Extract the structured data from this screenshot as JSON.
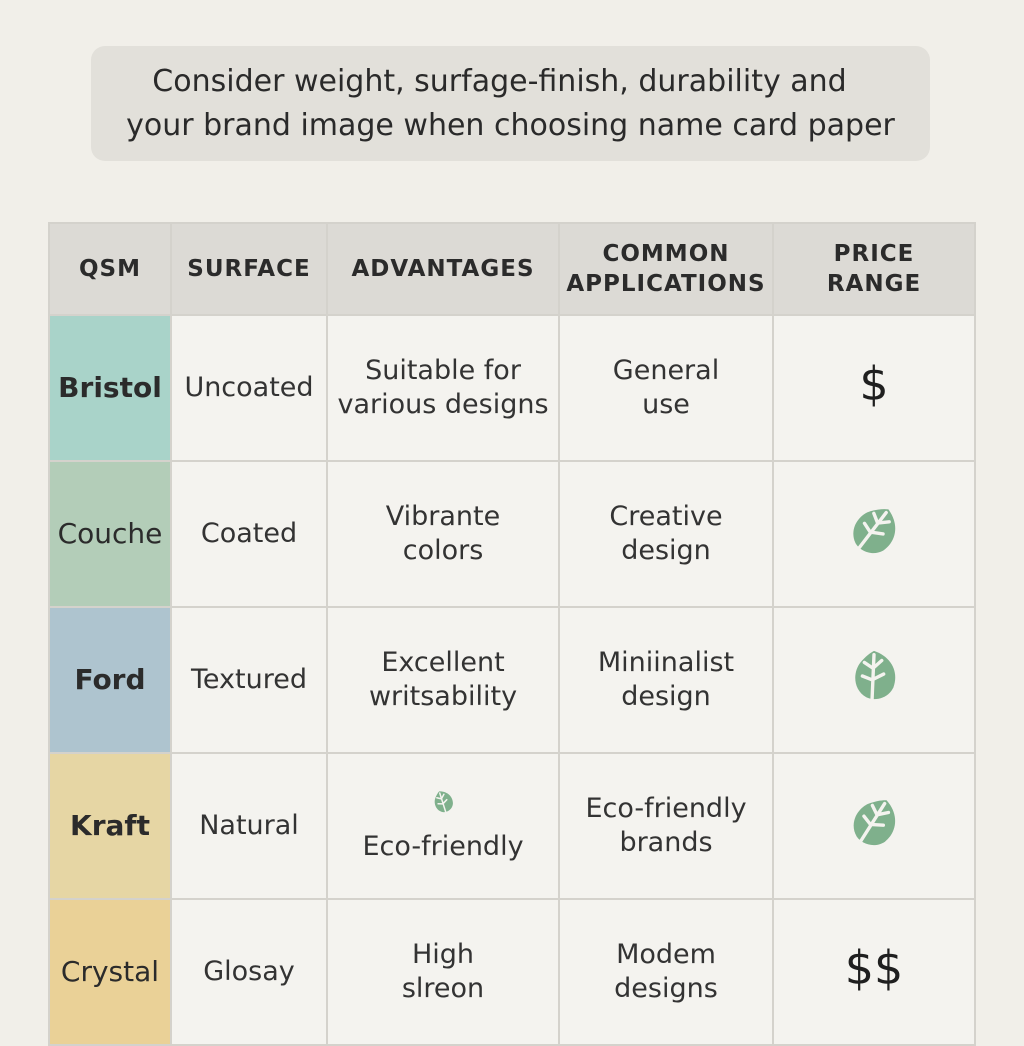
{
  "banner": {
    "line1": "Consider weight, surfage-finish, durability  and",
    "line2": "your brand image when choosing name card paper"
  },
  "table": {
    "headers": [
      {
        "line1": "QSM",
        "line2": ""
      },
      {
        "line1": "SURFACE",
        "line2": ""
      },
      {
        "line1": "ADVANTAGES",
        "line2": ""
      },
      {
        "line1": "COMMON",
        "line2": "APPLICATIONS"
      },
      {
        "line1": "PRICE",
        "line2": "RANGE"
      }
    ],
    "rows": [
      {
        "name": "Bristol",
        "name_color": "#a9d3c9",
        "surface": "Uncoated",
        "advantages": [
          "Suitable for",
          "various designs"
        ],
        "applications": [
          "General",
          "use"
        ],
        "price_text": "$",
        "price_icon": ""
      },
      {
        "name": "Couche",
        "name_color": "#b3cdb8",
        "surface": "Coated",
        "advantages": [
          "Vibrante",
          "colors"
        ],
        "applications": [
          "Creative",
          "design"
        ],
        "price_text": "",
        "price_icon": "leaf-icon"
      },
      {
        "name": "Ford",
        "name_color": "#aec4cf",
        "surface": "Textured",
        "advantages": [
          "Excellent",
          "writsability"
        ],
        "applications": [
          "Miniinalist",
          "design"
        ],
        "price_text": "",
        "price_icon": "leaf-icon"
      },
      {
        "name": "Kraft",
        "name_color": "#e6d6a4",
        "surface": "Natural",
        "advantages": [
          "",
          "Eco-friendly"
        ],
        "applications": [
          "Eco-friendly",
          "brands"
        ],
        "price_text": "",
        "price_icon": "leaf-icon"
      },
      {
        "name": "Crystal",
        "name_color": "#ead197",
        "surface": "Glosay",
        "advantages": [
          "High",
          "slreon"
        ],
        "applications": [
          "Modem",
          "designs"
        ],
        "price_text": "$$",
        "price_icon": ""
      }
    ]
  },
  "colors": {
    "leaf": "#7fb08c",
    "header_bg": "#dcdad5",
    "cell_bg": "#f4f3ef"
  }
}
